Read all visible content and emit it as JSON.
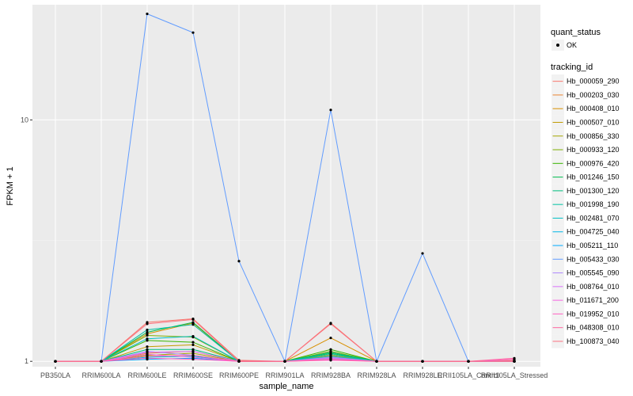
{
  "chart_data": {
    "type": "line",
    "xlabel": "sample_name",
    "ylabel": "FPKM + 1",
    "y_scale": "log10",
    "ylim": [
      0.95,
      30
    ],
    "y_ticks": [
      1,
      10
    ],
    "y_tick_labels": [
      "1",
      "10"
    ],
    "grid": true,
    "legend_position": "right",
    "categories": [
      "PB350LA",
      "RRIM600LA",
      "RRIM600LE",
      "RRIM600SE",
      "RRIM600PE",
      "RRIM901LA",
      "RRIM928BA",
      "RRIM928LA",
      "RRIM928LE",
      "RRII105LA_Control",
      "RRII105LA_Stressed"
    ],
    "quant_status": {
      "title": "quant_status",
      "items": [
        "OK"
      ]
    },
    "legend_title": "tracking_id",
    "series": [
      {
        "name": "Hb_000059_290",
        "color": "#F8766D",
        "values": [
          1,
          1,
          1.45,
          1.5,
          1.01,
          1,
          1.44,
          1,
          1,
          1,
          1.01
        ]
      },
      {
        "name": "Hb_000203_030",
        "color": "#EA8331",
        "values": [
          1,
          1,
          1.08,
          1.1,
          1,
          1,
          1.05,
          1,
          1,
          1,
          1
        ]
      },
      {
        "name": "Hb_000408_010",
        "color": "#D89000",
        "values": [
          1,
          1,
          1.3,
          1.44,
          1,
          1,
          1.25,
          1,
          1,
          1,
          1
        ]
      },
      {
        "name": "Hb_000507_010",
        "color": "#C09B00",
        "values": [
          1,
          1,
          1.15,
          1.17,
          1,
          1,
          1.06,
          1,
          1,
          1,
          1
        ]
      },
      {
        "name": "Hb_000856_330",
        "color": "#A3A500",
        "values": [
          1,
          1,
          1.06,
          1.08,
          1,
          1,
          1.04,
          1,
          1,
          1,
          1
        ]
      },
      {
        "name": "Hb_000933_120",
        "color": "#7CAE00",
        "values": [
          1,
          1,
          1.28,
          1.26,
          1,
          1,
          1.1,
          1,
          1,
          1,
          1
        ]
      },
      {
        "name": "Hb_000976_420",
        "color": "#39B600",
        "values": [
          1,
          1,
          1.22,
          1.2,
          1,
          1,
          1.12,
          1,
          1,
          1,
          1
        ]
      },
      {
        "name": "Hb_001246_150",
        "color": "#00BB4E",
        "values": [
          1,
          1,
          1.32,
          1.45,
          1,
          1,
          1.08,
          1,
          1,
          1,
          1
        ]
      },
      {
        "name": "Hb_001300_120",
        "color": "#00BF7D",
        "values": [
          1,
          1,
          1.12,
          1.12,
          1,
          1,
          1.09,
          1,
          1,
          1,
          1
        ]
      },
      {
        "name": "Hb_001998_190",
        "color": "#00C1A3",
        "values": [
          1,
          1,
          1.35,
          1.42,
          1,
          1,
          1.07,
          1,
          1,
          1,
          1
        ]
      },
      {
        "name": "Hb_002481_070",
        "color": "#00BFC4",
        "values": [
          1,
          1,
          1.24,
          1.27,
          1,
          1,
          1.05,
          1,
          1,
          1,
          1
        ]
      },
      {
        "name": "Hb_004725_040",
        "color": "#00B8E7",
        "values": [
          1,
          1,
          1.04,
          1.05,
          1,
          1,
          1.03,
          1,
          1,
          1,
          1
        ]
      },
      {
        "name": "Hb_005211_110",
        "color": "#00A9FF",
        "values": [
          1,
          1,
          1.02,
          1.03,
          1,
          1,
          1.02,
          1,
          1,
          1,
          1
        ]
      },
      {
        "name": "Hb_005433_030",
        "color": "#619CFF",
        "values": [
          1,
          1,
          27.5,
          23,
          2.6,
          1,
          11,
          1,
          2.8,
          1,
          1
        ]
      },
      {
        "name": "Hb_005545_090",
        "color": "#AE87FF",
        "values": [
          1,
          1,
          1.1,
          1.06,
          1,
          1,
          1.04,
          1,
          1,
          1,
          1
        ]
      },
      {
        "name": "Hb_008764_010",
        "color": "#DB72FB",
        "values": [
          1,
          1,
          1.09,
          1.1,
          1,
          1,
          1.03,
          1,
          1,
          1,
          1
        ]
      },
      {
        "name": "Hb_011671_200",
        "color": "#F564E3",
        "values": [
          1,
          1,
          1.07,
          1.04,
          1,
          1,
          1.02,
          1,
          1,
          1,
          1
        ]
      },
      {
        "name": "Hb_019952_010",
        "color": "#FF61C3",
        "values": [
          1,
          1,
          1.03,
          1.02,
          1,
          1,
          1.01,
          1,
          1,
          1,
          1.02
        ]
      },
      {
        "name": "Hb_048308_010",
        "color": "#FF689F",
        "values": [
          1,
          1,
          1.05,
          1.06,
          1,
          1,
          1.02,
          1,
          1,
          1,
          1.03
        ]
      },
      {
        "name": "Hb_100873_040",
        "color": "#FC717F",
        "values": [
          1,
          1,
          1.43,
          1.49,
          1,
          1,
          1.43,
          1,
          1,
          1,
          1
        ]
      }
    ]
  }
}
